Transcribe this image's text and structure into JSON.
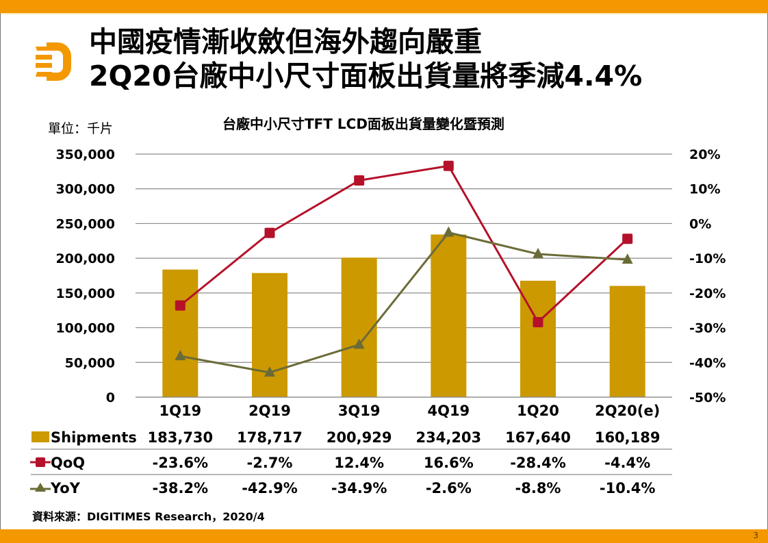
{
  "slide": {
    "title_line1": "中國疫情漸收斂但海外趨向嚴重",
    "title_line2": "2Q20台廠中小尺寸面板出貨量將季減4.4%",
    "unit_label": "單位：千片",
    "source": "資料來源：DIGITIMES Research，2020/4",
    "page_number": "3",
    "logo_icon": "digitimes-d-logo-icon"
  },
  "colors": {
    "accent_bar": "#f39800",
    "shipments": "#cc9900",
    "qoq": "#b5112a",
    "yoy": "#6b6b37",
    "grid": "#8c8c8c"
  },
  "chart_data": {
    "type": "bar",
    "title": "台廠中小尺寸TFT LCD面板出貨量變化暨預測",
    "categories": [
      "1Q19",
      "2Q19",
      "3Q19",
      "4Q19",
      "1Q20",
      "2Q20(e)"
    ],
    "series": [
      {
        "name": "Shipments",
        "type": "bar",
        "axis": "left",
        "values": [
          183730,
          178717,
          200929,
          234203,
          167640,
          160189
        ],
        "labels": [
          "183,730",
          "178,717",
          "200,929",
          "234,203",
          "167,640",
          "160,189"
        ]
      },
      {
        "name": "QoQ",
        "type": "line",
        "marker": "square",
        "axis": "right",
        "values": [
          -23.6,
          -2.7,
          12.4,
          16.6,
          -28.4,
          -4.4
        ],
        "labels": [
          "-23.6%",
          "-2.7%",
          "12.4%",
          "16.6%",
          "-28.4%",
          "-4.4%"
        ]
      },
      {
        "name": "YoY",
        "type": "line",
        "marker": "triangle",
        "axis": "right",
        "values": [
          -38.2,
          -42.9,
          -34.9,
          -2.6,
          -8.8,
          -10.4
        ],
        "labels": [
          "-38.2%",
          "-42.9%",
          "-34.9%",
          "-2.6%",
          "-8.8%",
          "-10.4%"
        ]
      }
    ],
    "y_left": {
      "range": [
        0,
        350000
      ],
      "ticks": [
        "0",
        "50,000",
        "100,000",
        "150,000",
        "200,000",
        "250,000",
        "300,000",
        "350,000"
      ]
    },
    "y_right": {
      "range": [
        -50,
        20
      ],
      "ticks": [
        "-50%",
        "-40%",
        "-30%",
        "-20%",
        "-10%",
        "0%",
        "10%",
        "20%"
      ]
    },
    "grid": true,
    "legend": "data-table-bottom"
  }
}
